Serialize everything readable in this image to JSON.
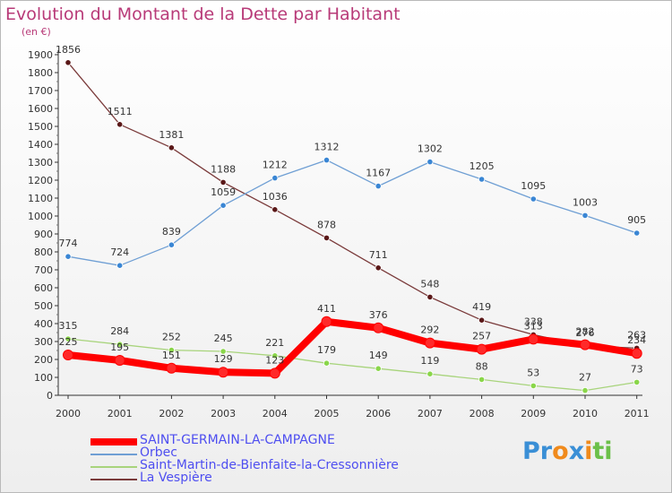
{
  "header": {
    "title": "Evolution du Montant de la Dette par Habitant",
    "unit": "(en €)"
  },
  "logo": {
    "text": "Proxiti",
    "letters": [
      "P",
      "r",
      "o",
      "x",
      "i",
      "t",
      "i"
    ],
    "colors": [
      "#3a8fd6",
      "#3a8fd6",
      "#f08a1c",
      "#3a8fd6",
      "#f08a1c",
      "#6cc04a",
      "#6cc04a"
    ]
  },
  "chart_data": {
    "type": "line",
    "x": [
      "2000",
      "2001",
      "2002",
      "2003",
      "2004",
      "2005",
      "2006",
      "2007",
      "2008",
      "2009",
      "2010",
      "2011"
    ],
    "ylim": [
      0,
      1900
    ],
    "yticks": [
      0,
      100,
      200,
      300,
      400,
      500,
      600,
      700,
      800,
      900,
      1000,
      1100,
      1200,
      1300,
      1400,
      1500,
      1600,
      1700,
      1800,
      1900
    ],
    "grid": false,
    "legend_position": "bottom-left",
    "series": [
      {
        "name": "SAINT-GERMAIN-LA-CAMPAGNE",
        "color": "#ff0000",
        "marker": "#ff2a2a",
        "width": "thick",
        "values": [
          225,
          195,
          151,
          129,
          123,
          411,
          376,
          292,
          257,
          313,
          282,
          234
        ]
      },
      {
        "name": "Orbec",
        "color": "#6f9fd4",
        "marker": "#3a86d4",
        "width": "thin",
        "values": [
          774,
          724,
          839,
          1059,
          1212,
          1312,
          1167,
          1302,
          1205,
          1095,
          1003,
          905
        ]
      },
      {
        "name": "Saint-Martin-de-Bienfaite-la-Cressonnière",
        "color": "#a8d47c",
        "marker": "#8ad64a",
        "width": "thin",
        "values": [
          315,
          284,
          252,
          245,
          221,
          179,
          149,
          119,
          88,
          53,
          27,
          73
        ]
      },
      {
        "name": "La Vespière",
        "color": "#7a3a3a",
        "marker": "#5a1818",
        "width": "thin",
        "values": [
          1856,
          1511,
          1381,
          1188,
          1036,
          878,
          711,
          548,
          419,
          338,
          276,
          263
        ]
      }
    ]
  }
}
